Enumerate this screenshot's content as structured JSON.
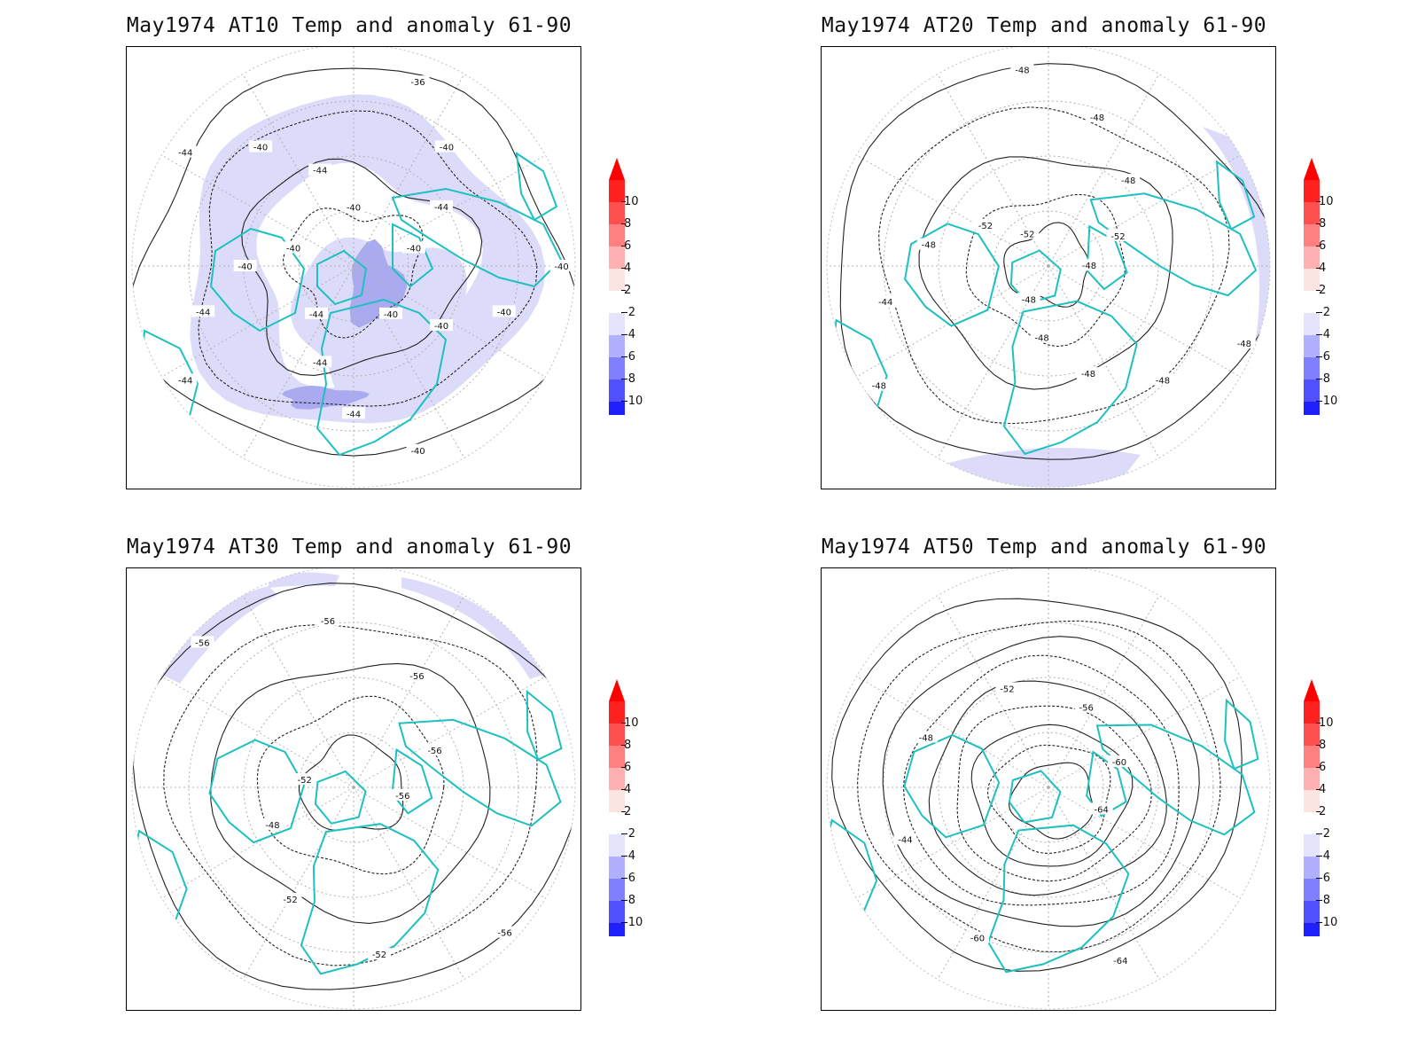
{
  "panels": [
    {
      "id": "at10",
      "title": "May1974 AT10 Temp and anomaly 61-90",
      "contour_labels": [
        "-40",
        "-40",
        "-40",
        "-40",
        "-40",
        "-44",
        "-44",
        "-44",
        "-44",
        "-44",
        "-40",
        "-40",
        "-44",
        "-40",
        "-44",
        "-40",
        "-36",
        "-40",
        "-44",
        "-40"
      ],
      "anomaly_patches": [
        {
          "level": -2,
          "color": "#dcdcfa"
        },
        {
          "level": -4,
          "color": "#aaaaf0"
        }
      ]
    },
    {
      "id": "at20",
      "title": "May1974 AT20 Temp and anomaly 61-90",
      "contour_labels": [
        "-48",
        "-48",
        "-48",
        "-48",
        "-48",
        "-48",
        "-44",
        "-48",
        "-52",
        "-52",
        "-48",
        "-48",
        "-48",
        "-52",
        "-48"
      ],
      "anomaly_patches": [
        {
          "level": -2,
          "color": "#dcdcfa"
        }
      ]
    },
    {
      "id": "at30",
      "title": "May1974 AT30 Temp and anomaly 61-90",
      "contour_labels": [
        "-56",
        "-52",
        "-52",
        "-48",
        "-52",
        "-56",
        "-56",
        "-56",
        "-56",
        "-56"
      ],
      "anomaly_patches": [
        {
          "level": -2,
          "color": "#dcdcfa"
        }
      ]
    },
    {
      "id": "at50",
      "title": "May1974 AT50 Temp and anomaly 61-90",
      "contour_labels": [
        "-64",
        "-60",
        "-44",
        "-48",
        "-52",
        "-56",
        "-60",
        "-64"
      ],
      "anomaly_patches": []
    }
  ],
  "colorbar": {
    "labels": [
      "10",
      "8",
      "6",
      "4",
      "2",
      "-2",
      "-4",
      "-6",
      "-8",
      "-10"
    ],
    "colors": [
      "#ff2020",
      "#ff5050",
      "#ff8080",
      "#ffb0b0",
      "#ffe4e4",
      "#ffffff",
      "#e4e4ff",
      "#b0b0ff",
      "#8080ff",
      "#5050ff",
      "#2020ff"
    ],
    "top_arrow_color": "#ff0000",
    "bottom_arrow_color": "#0000ff"
  },
  "styling": {
    "coastline_color": "#1fc0c0",
    "contour_color": "#222222",
    "grid_color": "#b0b0b0"
  }
}
